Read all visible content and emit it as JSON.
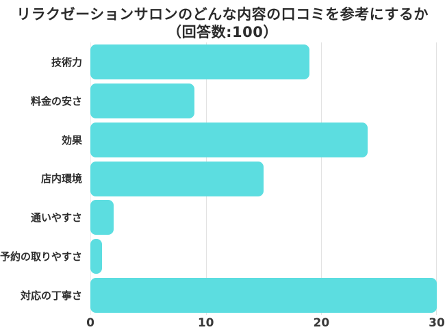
{
  "chart_data": {
    "type": "bar",
    "orientation": "horizontal",
    "title_line1": "リラクゼーションサロンのどんな内容の口コミを参考にするか",
    "title_line2": "（回答数:100）",
    "categories": [
      "技術力",
      "料金の安さ",
      "効果",
      "店内環境",
      "通いやすさ",
      "予約の取りやすさ",
      "対応の丁寧さ"
    ],
    "values": [
      19,
      9,
      24,
      15,
      2,
      1,
      30
    ],
    "xlabel": "",
    "ylabel": "",
    "xlim": [
      0,
      30
    ],
    "x_ticks": [
      "0",
      "10",
      "20",
      "30"
    ],
    "grid": "vertical gridlines at 0/10/20/30",
    "legend_position": "none",
    "colors": {
      "bar": "#5CDDE0",
      "gridline": "#e2e2e2",
      "title_text": "#2b2b2b",
      "label_text": "#2d2d2d",
      "background": "#ffffff"
    }
  }
}
